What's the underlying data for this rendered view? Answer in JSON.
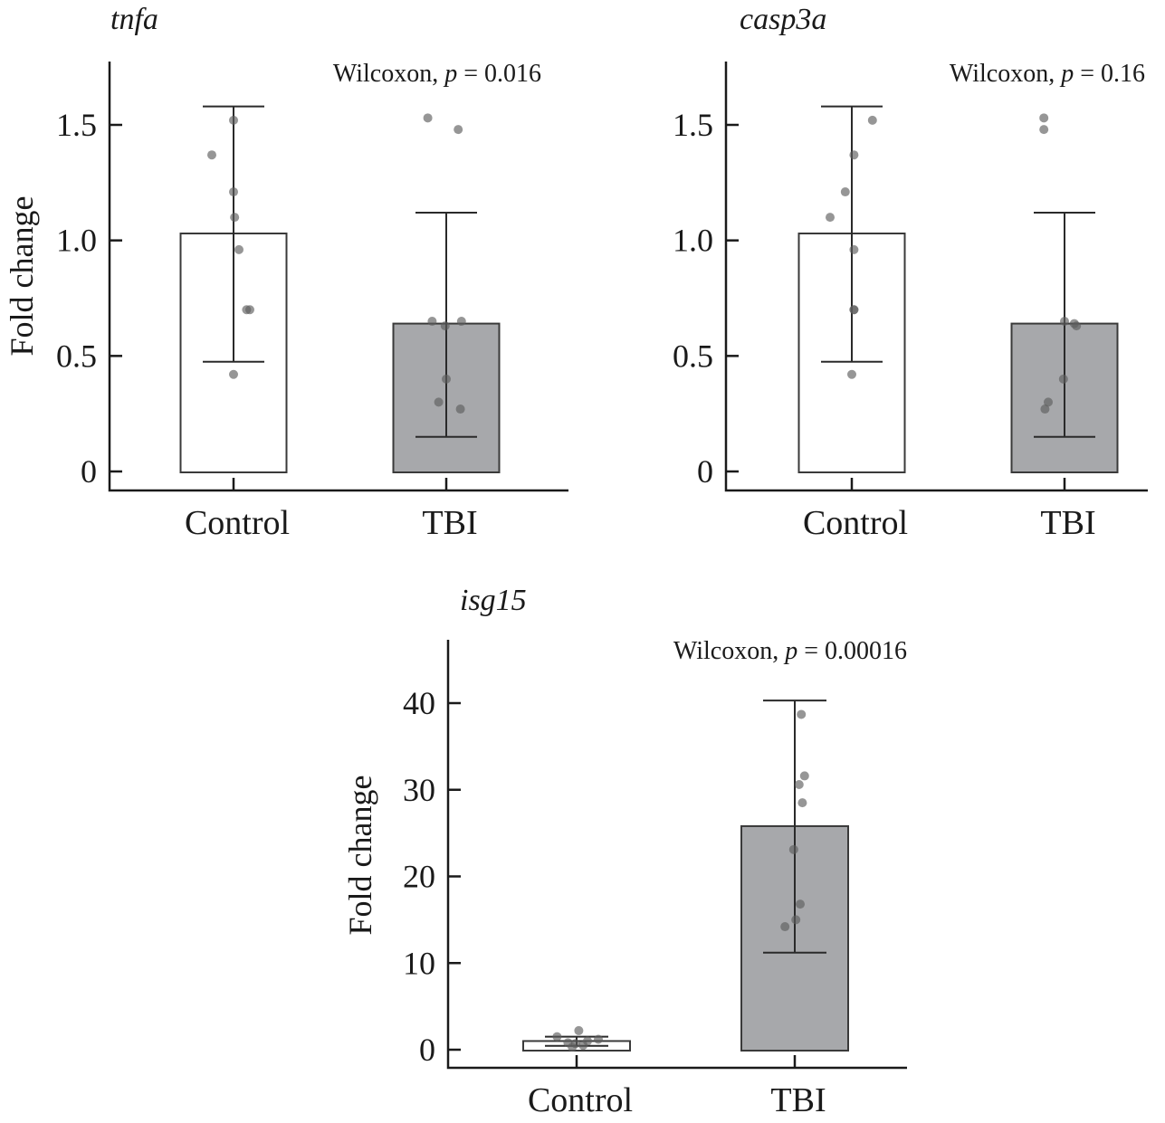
{
  "chart_data": [
    {
      "type": "bar",
      "title": "tnfa",
      "annotation": {
        "test": "Wilcoxon,",
        "p_label": "p",
        "p_value": "= 0.016"
      },
      "xlabel": "",
      "ylabel": "Fold change",
      "categories": [
        "Control",
        "TBI"
      ],
      "ylim": [
        0,
        1.75
      ],
      "yticks": [
        0,
        0.5,
        1.0,
        1.5
      ],
      "ytick_labels": [
        "0",
        "0.5",
        "1.0",
        "1.5"
      ],
      "bar_colors": [
        "#ffffff",
        "#a7a8ab"
      ],
      "values": [
        1.03,
        0.64
      ],
      "error_low": [
        0.475,
        0.15
      ],
      "error_high": [
        1.58,
        1.12
      ],
      "points": [
        [
          1.52,
          1.37,
          1.21,
          1.1,
          0.96,
          0.7,
          0.7,
          0.42
        ],
        [
          1.53,
          1.48,
          0.65,
          0.63,
          0.65,
          0.4,
          0.3,
          0.27
        ]
      ],
      "grid": false,
      "show_ylabel": true
    },
    {
      "type": "bar",
      "title": "casp3a",
      "annotation": {
        "test": "Wilcoxon,",
        "p_label": "p",
        "p_value": "= 0.16"
      },
      "xlabel": "",
      "ylabel": "",
      "categories": [
        "Control",
        "TBI"
      ],
      "ylim": [
        0,
        1.75
      ],
      "yticks": [
        0,
        0.5,
        1.0,
        1.5
      ],
      "ytick_labels": [
        "0",
        "0.5",
        "1.0",
        "1.5"
      ],
      "bar_colors": [
        "#ffffff",
        "#a7a8ab"
      ],
      "values": [
        1.03,
        0.64
      ],
      "error_low": [
        0.475,
        0.15
      ],
      "error_high": [
        1.58,
        1.12
      ],
      "points": [
        [
          1.52,
          1.37,
          1.21,
          1.1,
          0.96,
          0.7,
          0.7,
          0.42
        ],
        [
          1.53,
          1.48,
          0.65,
          0.64,
          0.63,
          0.4,
          0.3,
          0.27
        ]
      ],
      "grid": false,
      "show_ylabel": false
    },
    {
      "type": "bar",
      "title": "isg15",
      "annotation": {
        "test": "Wilcoxon,",
        "p_label": "p",
        "p_value": "= 0.00016"
      },
      "xlabel": "",
      "ylabel": "Fold change",
      "categories": [
        "Control",
        "TBI"
      ],
      "ylim": [
        0,
        47.5
      ],
      "yticks": [
        0,
        10,
        20,
        30,
        40
      ],
      "ytick_labels": [
        "0",
        "10",
        "20",
        "30",
        "40"
      ],
      "bar_colors": [
        "#ffffff",
        "#a7a8ab"
      ],
      "values": [
        1.0,
        25.8
      ],
      "error_low": [
        0.45,
        11.2
      ],
      "error_high": [
        1.5,
        40.3
      ],
      "points": [
        [
          2.2,
          1.5,
          1.2,
          1.0,
          0.8,
          0.7,
          0.5,
          0.3
        ],
        [
          38.7,
          31.6,
          30.6,
          28.5,
          23.1,
          16.8,
          15.0,
          14.2
        ]
      ],
      "grid": false,
      "show_ylabel": true
    }
  ]
}
